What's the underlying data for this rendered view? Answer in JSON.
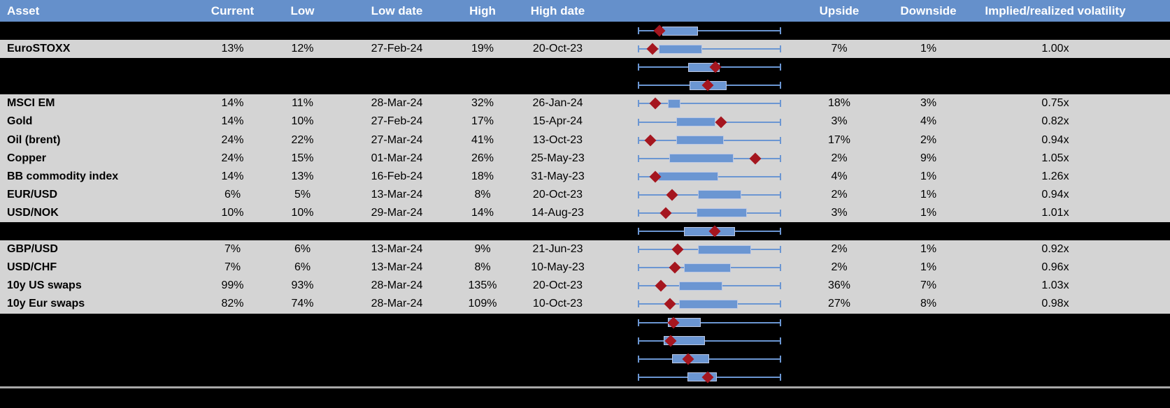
{
  "colors": {
    "header-bg": "#6590cb",
    "row-bg": "#d4d4d4",
    "spacer-bg": "#000000",
    "plot-blue": "#6b96d2",
    "box-border": "#bcc8e4",
    "diamond-red": "#a5161f",
    "divider": "#a8a8a8",
    "header-text": "#ffffff",
    "body-text": "#000000"
  },
  "header": {
    "asset": "Asset",
    "current": "Current",
    "low": "Low",
    "low_date": "Low date",
    "high": "High",
    "high_date": "High date",
    "plot": "",
    "upside": "Upside",
    "downside": "Downside",
    "vol": "Implied/realized volatility"
  },
  "plot_legend": {
    "box_marker": "implied-volatility-range-box",
    "diamond_marker": "current-level-diamond"
  },
  "rows": [
    {
      "type": "spacer",
      "plot": {
        "box": [
          0.17,
          0.42
        ],
        "diamond": 0.15
      }
    },
    {
      "type": "data",
      "asset": "EuroSTOXX",
      "current": "13%",
      "low": "12%",
      "low_date": "27-Feb-24",
      "high": "19%",
      "high_date": "20-Oct-23",
      "upside": "7%",
      "downside": "1%",
      "vol": "1.00x",
      "plot": {
        "box": [
          0.145,
          0.45
        ],
        "diamond": 0.1
      }
    },
    {
      "type": "spacer",
      "plot": {
        "box": [
          0.35,
          0.57
        ],
        "diamond": 0.54
      }
    },
    {
      "type": "spacer",
      "plot": {
        "box": [
          0.36,
          0.62
        ],
        "diamond": 0.49
      }
    },
    {
      "type": "data",
      "asset": "MSCI EM",
      "current": "14%",
      "low": "11%",
      "low_date": "28-Mar-24",
      "high": "32%",
      "high_date": "26-Jan-24",
      "upside": "18%",
      "downside": "3%",
      "vol": "0.75x",
      "plot": {
        "box": [
          0.21,
          0.3
        ],
        "diamond": 0.12
      }
    },
    {
      "type": "data",
      "asset": "Gold",
      "current": "14%",
      "low": "10%",
      "low_date": "27-Feb-24",
      "high": "17%",
      "high_date": "15-Apr-24",
      "upside": "3%",
      "downside": "4%",
      "vol": "0.82x",
      "plot": {
        "box": [
          0.27,
          0.54
        ],
        "diamond": 0.58
      }
    },
    {
      "type": "data",
      "asset": "Oil (brent)",
      "current": "24%",
      "low": "22%",
      "low_date": "27-Mar-24",
      "high": "41%",
      "high_date": "13-Oct-23",
      "upside": "17%",
      "downside": "2%",
      "vol": "0.94x",
      "plot": {
        "box": [
          0.27,
          0.6
        ],
        "diamond": 0.09
      }
    },
    {
      "type": "data",
      "asset": "Copper",
      "current": "24%",
      "low": "15%",
      "low_date": "01-Mar-24",
      "high": "26%",
      "high_date": "25-May-23",
      "upside": "2%",
      "downside": "9%",
      "vol": "1.05x",
      "plot": {
        "box": [
          0.22,
          0.67
        ],
        "diamond": 0.82
      }
    },
    {
      "type": "data",
      "asset": "BB commodity index",
      "current": "14%",
      "low": "13%",
      "low_date": "16-Feb-24",
      "high": "18%",
      "high_date": "31-May-23",
      "upside": "4%",
      "downside": "1%",
      "vol": "1.26x",
      "plot": {
        "box": [
          0.14,
          0.56
        ],
        "diamond": 0.12
      }
    },
    {
      "type": "data",
      "asset": "EUR/USD",
      "current": "6%",
      "low": "5%",
      "low_date": "13-Mar-24",
      "high": "8%",
      "high_date": "20-Oct-23",
      "upside": "2%",
      "downside": "1%",
      "vol": "0.94x",
      "plot": {
        "box": [
          0.42,
          0.72
        ],
        "diamond": 0.24
      }
    },
    {
      "type": "data",
      "asset": "USD/NOK",
      "current": "10%",
      "low": "10%",
      "low_date": "29-Mar-24",
      "high": "14%",
      "high_date": "14-Aug-23",
      "upside": "3%",
      "downside": "1%",
      "vol": "1.01x",
      "plot": {
        "box": [
          0.41,
          0.76
        ],
        "diamond": 0.195
      }
    },
    {
      "type": "spacer",
      "plot": {
        "box": [
          0.32,
          0.68
        ],
        "diamond": 0.535
      }
    },
    {
      "type": "data",
      "asset": "GBP/USD",
      "current": "7%",
      "low": "6%",
      "low_date": "13-Mar-24",
      "high": "9%",
      "high_date": "21-Jun-23",
      "upside": "2%",
      "downside": "1%",
      "vol": "0.92x",
      "plot": {
        "box": [
          0.42,
          0.79
        ],
        "diamond": 0.28
      }
    },
    {
      "type": "data",
      "asset": "USD/CHF",
      "current": "7%",
      "low": "6%",
      "low_date": "13-Mar-24",
      "high": "8%",
      "high_date": "10-May-23",
      "upside": "2%",
      "downside": "1%",
      "vol": "0.96x",
      "plot": {
        "box": [
          0.32,
          0.65
        ],
        "diamond": 0.26
      }
    },
    {
      "type": "data",
      "asset": "10y US swaps",
      "current": "99%",
      "low": "93%",
      "low_date": "28-Mar-24",
      "high": "135%",
      "high_date": "20-Oct-23",
      "upside": "36%",
      "downside": "7%",
      "vol": "1.03x",
      "plot": {
        "box": [
          0.29,
          0.59
        ],
        "diamond": 0.16
      }
    },
    {
      "type": "data",
      "asset": "10y Eur swaps",
      "current": "82%",
      "low": "74%",
      "low_date": "28-Mar-24",
      "high": "109%",
      "high_date": "10-Oct-23",
      "upside": "27%",
      "downside": "8%",
      "vol": "0.98x",
      "plot": {
        "box": [
          0.29,
          0.7
        ],
        "diamond": 0.225
      }
    },
    {
      "type": "spacer",
      "plot": {
        "box": [
          0.21,
          0.44
        ],
        "diamond": 0.25
      }
    },
    {
      "type": "spacer",
      "plot": {
        "box": [
          0.18,
          0.47
        ],
        "diamond": 0.23
      }
    },
    {
      "type": "spacer",
      "plot": {
        "box": [
          0.24,
          0.5
        ],
        "diamond": 0.35
      }
    },
    {
      "type": "spacer",
      "plot": {
        "box": [
          0.345,
          0.55
        ],
        "diamond": 0.49
      }
    }
  ]
}
